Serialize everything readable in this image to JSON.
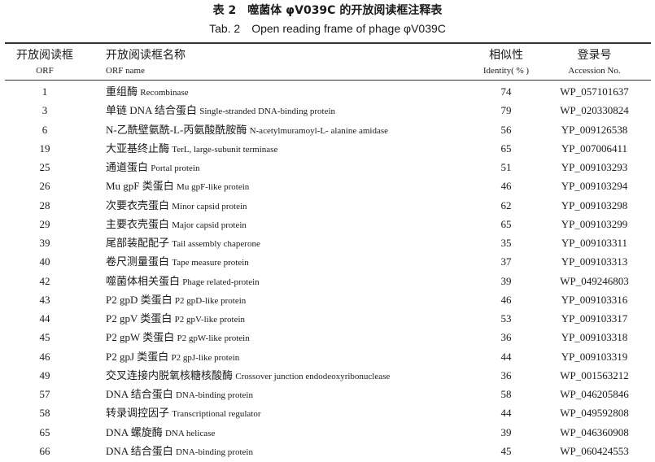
{
  "title_cn": "表 2　噬菌体 φV039C 的开放阅读框注释表",
  "title_en": "Tab. 2　Open reading frame of phage φV039C",
  "headers": {
    "orf_cn": "开放阅读框",
    "orf_en": "ORF",
    "name_cn": "开放阅读框名称",
    "name_en": "ORF name",
    "identity_cn": "相似性",
    "identity_en": "Identity( % )",
    "acc_cn": "登录号",
    "acc_en": "Accession No."
  },
  "rows": [
    {
      "orf": "1",
      "cn": "重组酶",
      "en": "Recombinase",
      "id": "74",
      "acc": "WP_057101637"
    },
    {
      "orf": "3",
      "cn": "单链 DNA 结合蛋白",
      "en": "Single-stranded DNA-binding protein",
      "id": "79",
      "acc": "WP_020330824"
    },
    {
      "orf": "6",
      "cn": "N-乙酰壁氨酰-L-丙氨酸酰胺酶",
      "en": "N-acetylmuramoyl-L- alanine amidase",
      "id": "56",
      "acc": "YP_009126538"
    },
    {
      "orf": "19",
      "cn": "大亚基终止酶",
      "en": "TerL, large-subunit terminase",
      "id": "65",
      "acc": "YP_007006411"
    },
    {
      "orf": "25",
      "cn": "通道蛋白",
      "en": "Portal protein",
      "id": "51",
      "acc": "YP_009103293"
    },
    {
      "orf": "26",
      "cn": "Mu gpF 类蛋白",
      "en": "Mu gpF-like protein",
      "id": "46",
      "acc": "YP_009103294"
    },
    {
      "orf": "28",
      "cn": "次要衣壳蛋白",
      "en": "Minor capsid protein",
      "id": "62",
      "acc": "YP_009103298"
    },
    {
      "orf": "29",
      "cn": "主要衣壳蛋白",
      "en": "Major capsid protein",
      "id": "65",
      "acc": "YP_009103299"
    },
    {
      "orf": "39",
      "cn": "尾部装配配子",
      "en": "Tail assembly chaperone",
      "id": "35",
      "acc": "YP_009103311"
    },
    {
      "orf": "40",
      "cn": "卷尺测量蛋白",
      "en": "Tape measure protein",
      "id": "37",
      "acc": "YP_009103313"
    },
    {
      "orf": "42",
      "cn": "噬菌体相关蛋白",
      "en": "Phage related-protein",
      "id": "39",
      "acc": "WP_049246803"
    },
    {
      "orf": "43",
      "cn": "P2 gpD 类蛋白",
      "en": "P2 gpD-like protein",
      "id": "46",
      "acc": "YP_009103316"
    },
    {
      "orf": "44",
      "cn": "P2 gpV 类蛋白",
      "en": "P2 gpV-like protein",
      "id": "53",
      "acc": "YP_009103317"
    },
    {
      "orf": "45",
      "cn": "P2 gpW 类蛋白",
      "en": "P2 gpW-like protein",
      "id": "36",
      "acc": "YP_009103318"
    },
    {
      "orf": "46",
      "cn": "P2 gpJ 类蛋白",
      "en": "P2 gpJ-like protein",
      "id": "44",
      "acc": "YP_009103319"
    },
    {
      "orf": "49",
      "cn": "交叉连接内脱氧核糖核酸酶",
      "en": "Crossover junction endodeoxyribonuclease",
      "id": "36",
      "acc": "WP_001563212"
    },
    {
      "orf": "57",
      "cn": "DNA 结合蛋白",
      "en": "DNA-binding protein",
      "id": "58",
      "acc": "WP_046205846"
    },
    {
      "orf": "58",
      "cn": "转录调控因子",
      "en": "Transcriptional regulator",
      "id": "44",
      "acc": "WP_049592808"
    },
    {
      "orf": "65",
      "cn": "DNA 螺旋酶",
      "en": "DNA helicase",
      "id": "39",
      "acc": "WP_046360908"
    },
    {
      "orf": "66",
      "cn": "DNA 结合蛋白",
      "en": "DNA-binding protein",
      "id": "45",
      "acc": "WP_060424553"
    }
  ]
}
